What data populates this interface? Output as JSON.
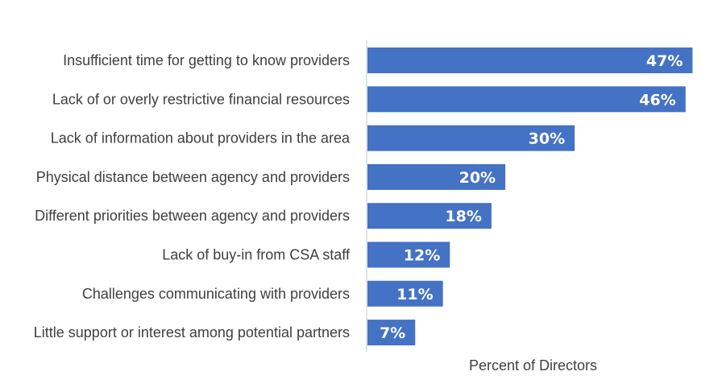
{
  "chart_data": {
    "type": "bar",
    "orientation": "horizontal",
    "categories": [
      "Insufficient time for getting to know providers",
      "Lack of or overly restrictive financial resources",
      "Lack of information about providers in the area",
      "Physical distance between agency and providers",
      "Different priorities between agency and providers",
      "Lack of buy-in from CSA staff",
      "Challenges communicating with providers",
      "Little support or interest among potential partners"
    ],
    "values": [
      47,
      46,
      30,
      20,
      18,
      12,
      11,
      7
    ],
    "value_labels": [
      "47%",
      "46%",
      "30%",
      "20%",
      "18%",
      "12%",
      "11%",
      "7%"
    ],
    "title": "",
    "xlabel": "Percent of Directors",
    "ylabel": "",
    "xlim": [
      0,
      48
    ],
    "grid": false,
    "legend": "none",
    "bar_color": "#4472C4",
    "label_color": "#FFFFFF",
    "text_color": "#404040",
    "axis_color": "#D9D9D9"
  }
}
